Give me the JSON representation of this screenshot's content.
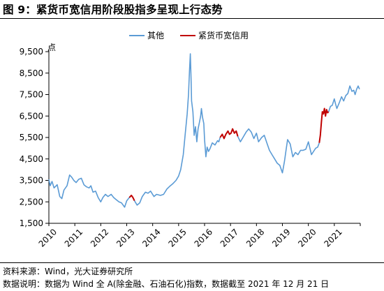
{
  "figure": {
    "title": "图 9：紧货币宽信用阶段股指多呈现上行态势",
    "source": "资料来源：Wind，光大证券研究所",
    "note": "数据说明：数据为 Wind 全 A(除金融、石油石化)指数，数据截至 2021 年 12 月 21 日"
  },
  "colors": {
    "other": "#5B9BD5",
    "tight": "#C00000"
  },
  "chart_data": {
    "type": "line",
    "title": "",
    "xlabel": "",
    "ylabel": "点",
    "ylim": [
      1500,
      9500
    ],
    "yticks": [
      1500,
      2500,
      3500,
      4500,
      5500,
      6500,
      7500,
      8500,
      9500
    ],
    "ytick_labels": [
      "1,500",
      "2,500",
      "3,500",
      "4,500",
      "5,500",
      "6,500",
      "7,500",
      "8,500",
      "9,500"
    ],
    "xlim": [
      2010,
      2022
    ],
    "xticks": [
      2010,
      2011,
      2012,
      2013,
      2014,
      2015,
      2016,
      2017,
      2018,
      2019,
      2020,
      2021
    ],
    "xtick_labels": [
      "2010",
      "2011",
      "2012",
      "2013",
      "2014",
      "2015",
      "2016",
      "2017",
      "2018",
      "2019",
      "2020",
      "2021"
    ],
    "legend_position": "top",
    "grid": false,
    "series": [
      {
        "name": "其他",
        "points": [
          [
            2010.0,
            3550
          ],
          [
            2010.05,
            3250
          ],
          [
            2010.12,
            3450
          ],
          [
            2010.2,
            3150
          ],
          [
            2010.32,
            3300
          ],
          [
            2010.42,
            2750
          ],
          [
            2010.5,
            2650
          ],
          [
            2010.58,
            3050
          ],
          [
            2010.7,
            3250
          ],
          [
            2010.8,
            3750
          ],
          [
            2010.88,
            3650
          ],
          [
            2010.96,
            3500
          ],
          [
            2011.05,
            3400
          ],
          [
            2011.15,
            3550
          ],
          [
            2011.25,
            3600
          ],
          [
            2011.35,
            3300
          ],
          [
            2011.45,
            3200
          ],
          [
            2011.55,
            3150
          ],
          [
            2011.62,
            3250
          ],
          [
            2011.7,
            2950
          ],
          [
            2011.8,
            3000
          ],
          [
            2011.9,
            2700
          ],
          [
            2012.0,
            2500
          ],
          [
            2012.08,
            2700
          ],
          [
            2012.18,
            2850
          ],
          [
            2012.28,
            2750
          ],
          [
            2012.4,
            2850
          ],
          [
            2012.5,
            2700
          ],
          [
            2012.6,
            2600
          ],
          [
            2012.7,
            2500
          ],
          [
            2012.8,
            2450
          ],
          [
            2012.92,
            2250
          ],
          [
            2013.0,
            2550
          ],
          [
            2013.1,
            2700
          ]
        ]
      },
      {
        "name": "紧货币宽信用",
        "points": [
          [
            2013.1,
            2700
          ],
          [
            2013.18,
            2800
          ],
          [
            2013.24,
            2700
          ],
          [
            2013.3,
            2550
          ]
        ]
      },
      {
        "name": "其他",
        "points": [
          [
            2013.3,
            2550
          ],
          [
            2013.4,
            2350
          ],
          [
            2013.5,
            2450
          ],
          [
            2013.6,
            2750
          ],
          [
            2013.72,
            2950
          ],
          [
            2013.82,
            2900
          ],
          [
            2013.92,
            3000
          ],
          [
            2014.05,
            2750
          ],
          [
            2014.15,
            2850
          ],
          [
            2014.3,
            2800
          ],
          [
            2014.42,
            2850
          ],
          [
            2014.55,
            3100
          ],
          [
            2014.68,
            3250
          ],
          [
            2014.78,
            3350
          ],
          [
            2014.9,
            3500
          ],
          [
            2015.0,
            3700
          ],
          [
            2015.08,
            4000
          ],
          [
            2015.18,
            4700
          ],
          [
            2015.25,
            5600
          ],
          [
            2015.33,
            6600
          ],
          [
            2015.38,
            7500
          ],
          [
            2015.42,
            8600
          ],
          [
            2015.45,
            9400
          ],
          [
            2015.48,
            8200
          ],
          [
            2015.5,
            7200
          ],
          [
            2015.55,
            6700
          ],
          [
            2015.6,
            5600
          ],
          [
            2015.65,
            6000
          ],
          [
            2015.7,
            5300
          ],
          [
            2015.75,
            5900
          ],
          [
            2015.8,
            6200
          ],
          [
            2015.85,
            6500
          ],
          [
            2015.88,
            6850
          ],
          [
            2015.92,
            6450
          ],
          [
            2015.97,
            6150
          ],
          [
            2016.0,
            5400
          ],
          [
            2016.05,
            4600
          ],
          [
            2016.1,
            5050
          ],
          [
            2016.15,
            4850
          ],
          [
            2016.2,
            4950
          ],
          [
            2016.3,
            5250
          ],
          [
            2016.4,
            5150
          ],
          [
            2016.5,
            5350
          ],
          [
            2016.55,
            5300
          ],
          [
            2016.6,
            5500
          ]
        ]
      },
      {
        "name": "紧货币宽信用",
        "points": [
          [
            2016.6,
            5500
          ],
          [
            2016.68,
            5650
          ],
          [
            2016.75,
            5450
          ],
          [
            2016.82,
            5650
          ],
          [
            2016.9,
            5800
          ],
          [
            2016.96,
            5650
          ],
          [
            2017.02,
            5700
          ],
          [
            2017.08,
            5900
          ],
          [
            2017.15,
            5700
          ],
          [
            2017.22,
            5800
          ],
          [
            2017.28,
            5550
          ]
        ]
      },
      {
        "name": "其他",
        "points": [
          [
            2017.28,
            5550
          ],
          [
            2017.38,
            5300
          ],
          [
            2017.48,
            5500
          ],
          [
            2017.6,
            5750
          ],
          [
            2017.7,
            5900
          ],
          [
            2017.8,
            5750
          ],
          [
            2017.9,
            5450
          ],
          [
            2018.0,
            5700
          ],
          [
            2018.08,
            5300
          ],
          [
            2018.2,
            5500
          ],
          [
            2018.3,
            5600
          ],
          [
            2018.4,
            5250
          ],
          [
            2018.5,
            4900
          ],
          [
            2018.6,
            4700
          ],
          [
            2018.7,
            4500
          ],
          [
            2018.8,
            4300
          ],
          [
            2018.9,
            4200
          ],
          [
            2019.0,
            3850
          ],
          [
            2019.08,
            4400
          ],
          [
            2019.15,
            5000
          ],
          [
            2019.2,
            5400
          ],
          [
            2019.3,
            5200
          ],
          [
            2019.4,
            4600
          ],
          [
            2019.5,
            4800
          ],
          [
            2019.6,
            4700
          ],
          [
            2019.7,
            4900
          ],
          [
            2019.8,
            4900
          ],
          [
            2019.9,
            4950
          ],
          [
            2020.0,
            5300
          ],
          [
            2020.05,
            5050
          ],
          [
            2020.12,
            4700
          ],
          [
            2020.2,
            4850
          ],
          [
            2020.28,
            5000
          ],
          [
            2020.36,
            5050
          ],
          [
            2020.42,
            5250
          ]
        ]
      },
      {
        "name": "紧货币宽信用",
        "points": [
          [
            2020.42,
            5250
          ],
          [
            2020.46,
            5600
          ],
          [
            2020.5,
            6200
          ],
          [
            2020.54,
            6700
          ],
          [
            2020.58,
            6600
          ],
          [
            2020.62,
            6850
          ],
          [
            2020.66,
            6500
          ],
          [
            2020.7,
            6800
          ],
          [
            2020.74,
            6650
          ],
          [
            2020.78,
            6700
          ]
        ]
      },
      {
        "name": "其他",
        "points": [
          [
            2020.78,
            6700
          ],
          [
            2020.85,
            6950
          ],
          [
            2020.92,
            7000
          ],
          [
            2021.0,
            7300
          ],
          [
            2021.05,
            7050
          ],
          [
            2021.1,
            6850
          ],
          [
            2021.15,
            7000
          ],
          [
            2021.2,
            7150
          ],
          [
            2021.28,
            7400
          ],
          [
            2021.36,
            7200
          ],
          [
            2021.44,
            7450
          ],
          [
            2021.52,
            7550
          ],
          [
            2021.6,
            7900
          ],
          [
            2021.68,
            7650
          ],
          [
            2021.75,
            7700
          ],
          [
            2021.8,
            7500
          ],
          [
            2021.86,
            7750
          ],
          [
            2021.92,
            7900
          ],
          [
            2021.97,
            7750
          ]
        ]
      }
    ]
  }
}
